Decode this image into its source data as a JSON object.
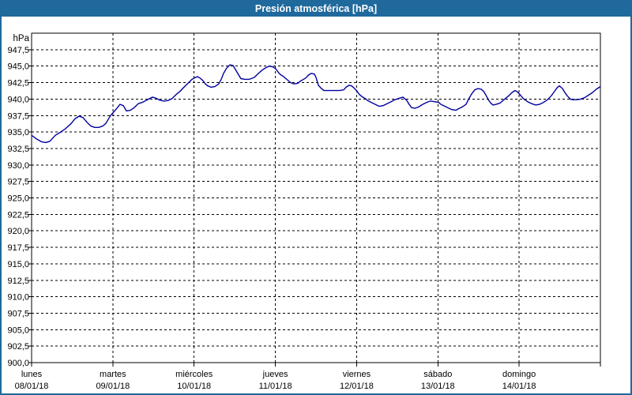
{
  "window": {
    "title": "Presión atmosférica [hPa]"
  },
  "colors": {
    "title_bar": "#20699c",
    "window_border": "#20699c",
    "title_text": "#ffffff",
    "background": "#ffffff",
    "plot_background": "#ffffff",
    "plot_border": "#000000",
    "grid": "#000000",
    "line": "#0000a0",
    "label_text": "#000000"
  },
  "chart_data": {
    "type": "line",
    "title": "Presión atmosférica [hPa]",
    "grid": "dashed",
    "legend": "none",
    "y_axis": {
      "unit_label": "hPa",
      "min": 900.0,
      "max": 950.0,
      "tick_step": 2.5,
      "top_tick_labeled": false,
      "tick_labels": [
        "947,5",
        "945,0",
        "942,5",
        "940,0",
        "937,5",
        "935,0",
        "932,5",
        "930,0",
        "927,5",
        "925,0",
        "922,5",
        "920,0",
        "917,5",
        "915,0",
        "912,5",
        "910,0",
        "907,5",
        "905,0",
        "902,5",
        "900,0"
      ]
    },
    "x_axis": {
      "hours_total": 168,
      "hours_per_day": 24,
      "days": [
        {
          "name": "lunes",
          "date": "08/01/18"
        },
        {
          "name": "martes",
          "date": "09/01/18"
        },
        {
          "name": "miércoles",
          "date": "10/01/18"
        },
        {
          "name": "jueves",
          "date": "11/01/18"
        },
        {
          "name": "viernes",
          "date": "12/01/18"
        },
        {
          "name": "sábado",
          "date": "13/01/18"
        },
        {
          "name": "domingo",
          "date": "14/01/18"
        }
      ]
    },
    "series": [
      {
        "name": "Presión atmosférica",
        "unit": "hPa",
        "points": [
          [
            0,
            934.5
          ],
          [
            1.6,
            933.9
          ],
          [
            3,
            933.5
          ],
          [
            4.2,
            933.4
          ],
          [
            5.4,
            933.6
          ],
          [
            7,
            934.5
          ],
          [
            8.6,
            935
          ],
          [
            10,
            935.5
          ],
          [
            11.7,
            936.3
          ],
          [
            12.8,
            937
          ],
          [
            14,
            937.4
          ],
          [
            15.2,
            937.2
          ],
          [
            16.3,
            936.5
          ],
          [
            17.5,
            935.9
          ],
          [
            18.7,
            935.7
          ],
          [
            19.8,
            935.7
          ],
          [
            21,
            935.9
          ],
          [
            21.9,
            936.3
          ],
          [
            22.6,
            936.9
          ],
          [
            23.3,
            937.5
          ],
          [
            24,
            937.9
          ],
          [
            25.2,
            938.6
          ],
          [
            26.1,
            939.2
          ],
          [
            27.1,
            939
          ],
          [
            28,
            938.2
          ],
          [
            29.2,
            938.3
          ],
          [
            30.3,
            938.7
          ],
          [
            31.5,
            939.3
          ],
          [
            32.7,
            939.5
          ],
          [
            33.8,
            939.8
          ],
          [
            35.7,
            940.3
          ],
          [
            36.9,
            940.1
          ],
          [
            38,
            939.8
          ],
          [
            39.2,
            939.7
          ],
          [
            40.4,
            939.8
          ],
          [
            41.5,
            940.1
          ],
          [
            42.7,
            940.7
          ],
          [
            43.9,
            941.2
          ],
          [
            45,
            941.8
          ],
          [
            46.2,
            942.4
          ],
          [
            47.4,
            943
          ],
          [
            48.1,
            943.2
          ],
          [
            49,
            943.4
          ],
          [
            49.7,
            943.2
          ],
          [
            50.6,
            942.8
          ],
          [
            51.3,
            942.3
          ],
          [
            52,
            942
          ],
          [
            53,
            941.8
          ],
          [
            54.1,
            941.9
          ],
          [
            55.3,
            942.3
          ],
          [
            56,
            943
          ],
          [
            56.7,
            943.9
          ],
          [
            57.6,
            944.7
          ],
          [
            58.6,
            945.2
          ],
          [
            59.5,
            945.1
          ],
          [
            60.2,
            944.5
          ],
          [
            61.1,
            943.7
          ],
          [
            61.8,
            943.1
          ],
          [
            63,
            943
          ],
          [
            64.2,
            943
          ],
          [
            64.9,
            943.1
          ],
          [
            65.8,
            943.3
          ],
          [
            67,
            943.9
          ],
          [
            68.1,
            944.4
          ],
          [
            69.3,
            944.8
          ],
          [
            70.2,
            945
          ],
          [
            71.2,
            944.9
          ],
          [
            72.1,
            944.6
          ],
          [
            72.8,
            944.1
          ],
          [
            73.5,
            943.7
          ],
          [
            74.2,
            943.5
          ],
          [
            75.1,
            943.1
          ],
          [
            75.8,
            942.8
          ],
          [
            76.5,
            942.5
          ],
          [
            77.5,
            942.3
          ],
          [
            78.6,
            942.4
          ],
          [
            79.3,
            942.7
          ],
          [
            80,
            942.9
          ],
          [
            81,
            943.2
          ],
          [
            81.7,
            943.6
          ],
          [
            82.6,
            943.9
          ],
          [
            83.5,
            943.8
          ],
          [
            84,
            943.3
          ],
          [
            84.7,
            942.1
          ],
          [
            85.6,
            941.6
          ],
          [
            86.3,
            941.3
          ],
          [
            88.7,
            941.3
          ],
          [
            91,
            941.3
          ],
          [
            92.2,
            941.4
          ],
          [
            92.9,
            941.8
          ],
          [
            93.8,
            942.1
          ],
          [
            94.5,
            942
          ],
          [
            95.2,
            941.7
          ],
          [
            96.1,
            941.2
          ],
          [
            96.8,
            940.7
          ],
          [
            97.5,
            940.4
          ],
          [
            98.5,
            940.1
          ],
          [
            99.2,
            939.8
          ],
          [
            100.3,
            939.5
          ],
          [
            101.5,
            939.2
          ],
          [
            102.7,
            938.9
          ],
          [
            103.8,
            939
          ],
          [
            105,
            939.3
          ],
          [
            106.2,
            939.6
          ],
          [
            107.3,
            939.9
          ],
          [
            108.5,
            940.1
          ],
          [
            109.7,
            940.3
          ],
          [
            110.8,
            939.8
          ],
          [
            111.5,
            939.2
          ],
          [
            112.2,
            938.7
          ],
          [
            113.2,
            938.6
          ],
          [
            114.3,
            938.8
          ],
          [
            115.5,
            939.2
          ],
          [
            116.7,
            939.5
          ],
          [
            117.8,
            939.7
          ],
          [
            119,
            939.6
          ],
          [
            120.2,
            939.5
          ],
          [
            120.9,
            939.2
          ],
          [
            122.1,
            938.9
          ],
          [
            123.3,
            938.6
          ],
          [
            124.1,
            938.4
          ],
          [
            125.3,
            938.3
          ],
          [
            126,
            938.5
          ],
          [
            127.2,
            938.8
          ],
          [
            128.3,
            939.2
          ],
          [
            129.1,
            940
          ],
          [
            130,
            940.8
          ],
          [
            130.9,
            941.4
          ],
          [
            131.8,
            941.6
          ],
          [
            132.8,
            941.5
          ],
          [
            133.5,
            941.2
          ],
          [
            134.2,
            940.6
          ],
          [
            134.9,
            939.9
          ],
          [
            135.6,
            939.4
          ],
          [
            136.3,
            939.1
          ],
          [
            137.2,
            939.2
          ],
          [
            138.4,
            939.4
          ],
          [
            139.5,
            939.9
          ],
          [
            140.7,
            940.4
          ],
          [
            141.9,
            941
          ],
          [
            142.8,
            941.3
          ],
          [
            143.5,
            941.1
          ],
          [
            144.2,
            940.7
          ],
          [
            145.4,
            940
          ],
          [
            146.5,
            939.6
          ],
          [
            147.7,
            939.3
          ],
          [
            148.9,
            939.1
          ],
          [
            150,
            939.2
          ],
          [
            151.2,
            939.5
          ],
          [
            152.4,
            939.9
          ],
          [
            153.5,
            940.5
          ],
          [
            154.5,
            941.2
          ],
          [
            155.2,
            941.7
          ],
          [
            155.9,
            942
          ],
          [
            156.8,
            941.6
          ],
          [
            157.5,
            941
          ],
          [
            158.2,
            940.5
          ],
          [
            159.1,
            940
          ],
          [
            159.8,
            939.9
          ],
          [
            161,
            939.9
          ],
          [
            162.2,
            940
          ],
          [
            163.3,
            940.2
          ],
          [
            164.5,
            940.6
          ],
          [
            165.7,
            941
          ],
          [
            166.8,
            941.5
          ],
          [
            168,
            941.9
          ]
        ]
      }
    ]
  }
}
